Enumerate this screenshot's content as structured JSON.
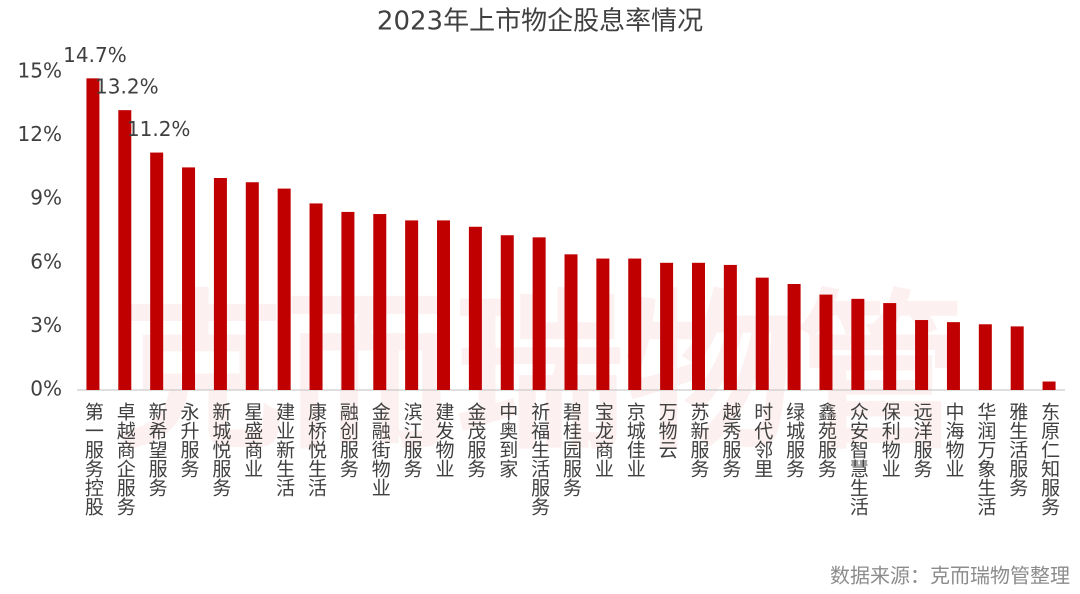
{
  "chart_data": {
    "type": "bar",
    "title": "2023年上市物企股息率情况",
    "categories": [
      "第一服务控股",
      "卓越商企服务",
      "新希望服务",
      "永升服务",
      "新城悦服务",
      "星盛商业",
      "建业新生活",
      "康桥悦生活",
      "融创服务",
      "金融街物业",
      "滨江服务",
      "建发物业",
      "金茂服务",
      "中奥到家",
      "祈福生活服务",
      "碧桂园服务",
      "宝龙商业",
      "京城佳业",
      "万物云",
      "苏新服务",
      "越秀服务",
      "时代邻里",
      "绿城服务",
      "鑫苑服务",
      "众安智慧生活",
      "保利物业",
      "远洋服务",
      "中海物业",
      "华润万象生活",
      "雅生活服务",
      "东原仁知服务"
    ],
    "values": [
      14.7,
      13.2,
      11.2,
      10.5,
      10.0,
      9.8,
      9.5,
      8.8,
      8.4,
      8.3,
      8.0,
      8.0,
      7.7,
      7.3,
      7.2,
      6.4,
      6.2,
      6.2,
      6.0,
      6.0,
      5.9,
      5.3,
      5.0,
      4.5,
      4.3,
      4.1,
      3.3,
      3.2,
      3.1,
      3.0,
      0.4
    ],
    "value_labels": [
      "14.7%",
      "13.2%",
      "11.2%",
      null,
      null,
      null,
      null,
      null,
      null,
      null,
      null,
      null,
      null,
      null,
      null,
      null,
      null,
      null,
      null,
      null,
      null,
      null,
      null,
      null,
      null,
      null,
      null,
      null,
      null,
      null,
      null
    ],
    "color": "#c00000",
    "ylim": [
      0,
      15
    ],
    "yticks": [
      {
        "value": 0,
        "label": "0%"
      },
      {
        "value": 3,
        "label": "3%"
      },
      {
        "value": 6,
        "label": "6%"
      },
      {
        "value": 9,
        "label": "9%"
      },
      {
        "value": 12,
        "label": "12%"
      },
      {
        "value": 15,
        "label": "15%"
      }
    ],
    "grid": false,
    "watermark": "克而瑞物管",
    "source": "数据来源：克而瑞物管整理"
  }
}
